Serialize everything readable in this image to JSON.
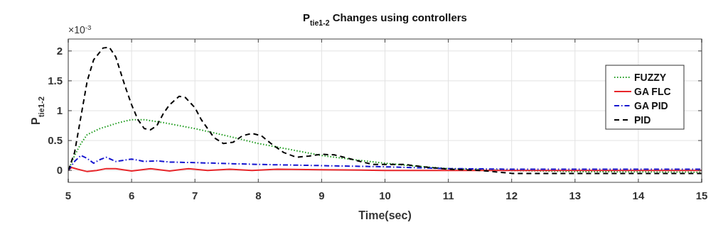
{
  "chart_data": {
    "type": "line",
    "title": "P$_{tie1-2}$ Changes using controllers",
    "xlabel": "Time(sec)",
    "ylabel": "P$_{tie1-2}$",
    "annotations": [
      "×10$^{-3}$"
    ],
    "xlim": [
      5,
      15
    ],
    "xticks": [
      5,
      6,
      7,
      8,
      9,
      10,
      11,
      12,
      13,
      14,
      15
    ],
    "ylim": [
      -0.2,
      2.2
    ],
    "yticks": [
      0,
      0.5,
      1,
      1.5,
      2
    ],
    "grid": true,
    "legend": "top right",
    "series": [
      {
        "name": "FUZZY",
        "color": "#1a9a1a",
        "line_style": "dotted",
        "x": [
          5,
          5.1,
          5.2,
          5.3,
          5.5,
          5.8,
          6,
          6.2,
          6.5,
          7,
          7.5,
          8,
          8.5,
          9,
          9.5,
          10,
          10.5,
          11,
          12,
          13,
          15
        ],
        "values": [
          0,
          0.25,
          0.45,
          0.6,
          0.7,
          0.8,
          0.85,
          0.85,
          0.8,
          0.7,
          0.58,
          0.45,
          0.35,
          0.25,
          0.18,
          0.12,
          0.07,
          0.03,
          0,
          -0.02,
          -0.03
        ]
      },
      {
        "name": "GA FLC",
        "color": "#e8262a",
        "line_style": "solid",
        "x": [
          5,
          5.05,
          5.15,
          5.3,
          5.45,
          5.6,
          5.75,
          6,
          6.3,
          6.6,
          6.9,
          7.2,
          7.55,
          7.9,
          8.3,
          9,
          10,
          12,
          15
        ],
        "values": [
          0,
          0.05,
          0.02,
          -0.02,
          0,
          0.03,
          0.03,
          -0.01,
          0.03,
          -0.01,
          0.03,
          0,
          0.02,
          0,
          0.02,
          0.01,
          0,
          0,
          0
        ]
      },
      {
        "name": "GA PID",
        "color": "#1515d0",
        "line_style": "dashdot",
        "x": [
          5,
          5.1,
          5.2,
          5.3,
          5.4,
          5.5,
          5.6,
          5.75,
          6,
          6.2,
          6.4,
          6.6,
          7,
          8,
          9,
          10,
          11,
          12,
          15
        ],
        "values": [
          0,
          0.15,
          0.25,
          0.2,
          0.12,
          0.18,
          0.22,
          0.15,
          0.19,
          0.15,
          0.16,
          0.14,
          0.13,
          0.1,
          0.08,
          0.06,
          0.03,
          0.02,
          0.02
        ]
      },
      {
        "name": "PID",
        "color": "#000000",
        "line_style": "dashed",
        "x": [
          5,
          5.1,
          5.2,
          5.3,
          5.4,
          5.55,
          5.65,
          5.75,
          5.9,
          6,
          6.1,
          6.2,
          6.3,
          6.4,
          6.5,
          6.6,
          6.75,
          6.85,
          7,
          7.1,
          7.3,
          7.45,
          7.6,
          7.75,
          7.9,
          8.05,
          8.2,
          8.4,
          8.6,
          8.8,
          9,
          9.2,
          9.5,
          9.8,
          10,
          10.3,
          10.6,
          11,
          11.5,
          12,
          13,
          15
        ],
        "values": [
          0,
          0.3,
          0.9,
          1.5,
          1.85,
          2.05,
          2.06,
          1.9,
          1.4,
          1.1,
          0.85,
          0.7,
          0.68,
          0.75,
          0.95,
          1.1,
          1.24,
          1.22,
          1.05,
          0.85,
          0.55,
          0.45,
          0.47,
          0.58,
          0.62,
          0.58,
          0.45,
          0.3,
          0.22,
          0.24,
          0.27,
          0.26,
          0.18,
          0.1,
          0.1,
          0.1,
          0.06,
          0.02,
          0,
          -0.05,
          -0.05,
          -0.05
        ]
      }
    ]
  }
}
